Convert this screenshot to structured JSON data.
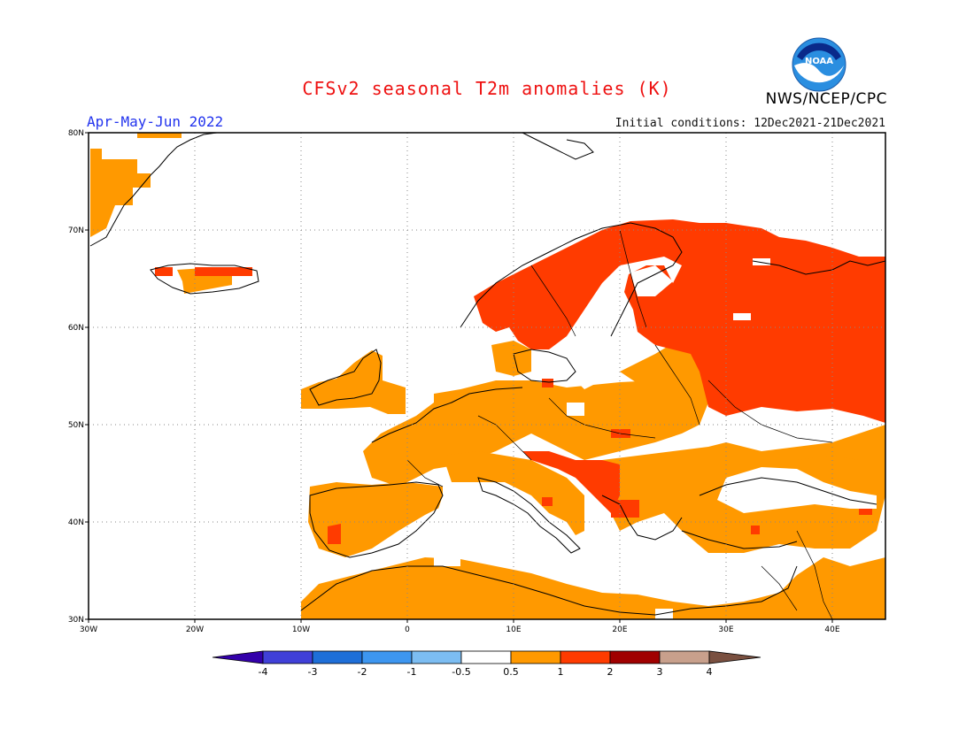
{
  "header": {
    "title": "CFSv2 seasonal T2m anomalies (K)",
    "period": "Apr-May-Jun 2022",
    "initial_conditions": "Initial conditions: 12Dec2021-21Dec2021",
    "agency": "NWS/NCEP/CPC",
    "logo_text": "NOAA"
  },
  "map": {
    "region": "Europe",
    "lon_ticks": [
      "30W",
      "20W",
      "10W",
      "0",
      "10E",
      "20E",
      "30E",
      "40E"
    ],
    "lat_ticks": [
      "30N",
      "40N",
      "50N",
      "60N",
      "70N",
      "80N"
    ],
    "lon_range": [
      -30,
      45
    ],
    "lat_range": [
      30,
      80
    ],
    "grid": "dotted"
  },
  "colorbar": {
    "labels": [
      "-4",
      "-3",
      "-2",
      "-1",
      "-0.5",
      "0.5",
      "1",
      "2",
      "3",
      "4"
    ],
    "colors": [
      "#3300aa",
      "#4040d8",
      "#1e6fd8",
      "#3d96f0",
      "#7cbdf2",
      "#ffffff",
      "#ff9900",
      "#ff3b00",
      "#a00000",
      "#c8a08c",
      "#7a5040"
    ]
  },
  "legend_colors": {
    "anom_0_5_1": "#ff9900",
    "anom_1_2": "#ff3b00",
    "anom_2_3": "#a00000",
    "neutral": "#ffffff"
  }
}
